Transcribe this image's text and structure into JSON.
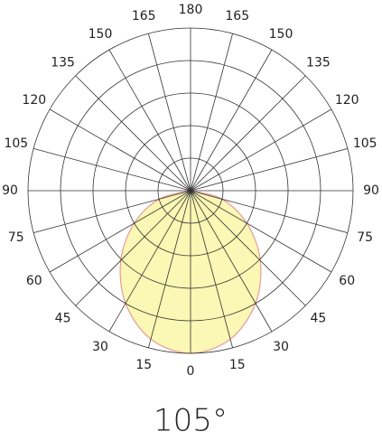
{
  "chart_data": {
    "type": "polar",
    "caption": "105°",
    "angles": [
      -90,
      -75,
      -60,
      -45,
      -30,
      -15,
      0,
      15,
      30,
      45,
      60,
      75,
      90
    ],
    "values": [
      0,
      19.8,
      40,
      60.7,
      80,
      94.5,
      100,
      94.5,
      80,
      60.7,
      40,
      19.8,
      0
    ],
    "color": "#fbf7b4",
    "edge_color": "#e79a9a",
    "rlim": [
      0,
      100
    ],
    "rticks": [
      20,
      40,
      60,
      80,
      100
    ],
    "thetaticks": [
      0,
      15,
      30,
      45,
      60,
      75,
      90,
      105,
      120,
      135,
      150,
      165,
      180
    ],
    "grid": true
  }
}
